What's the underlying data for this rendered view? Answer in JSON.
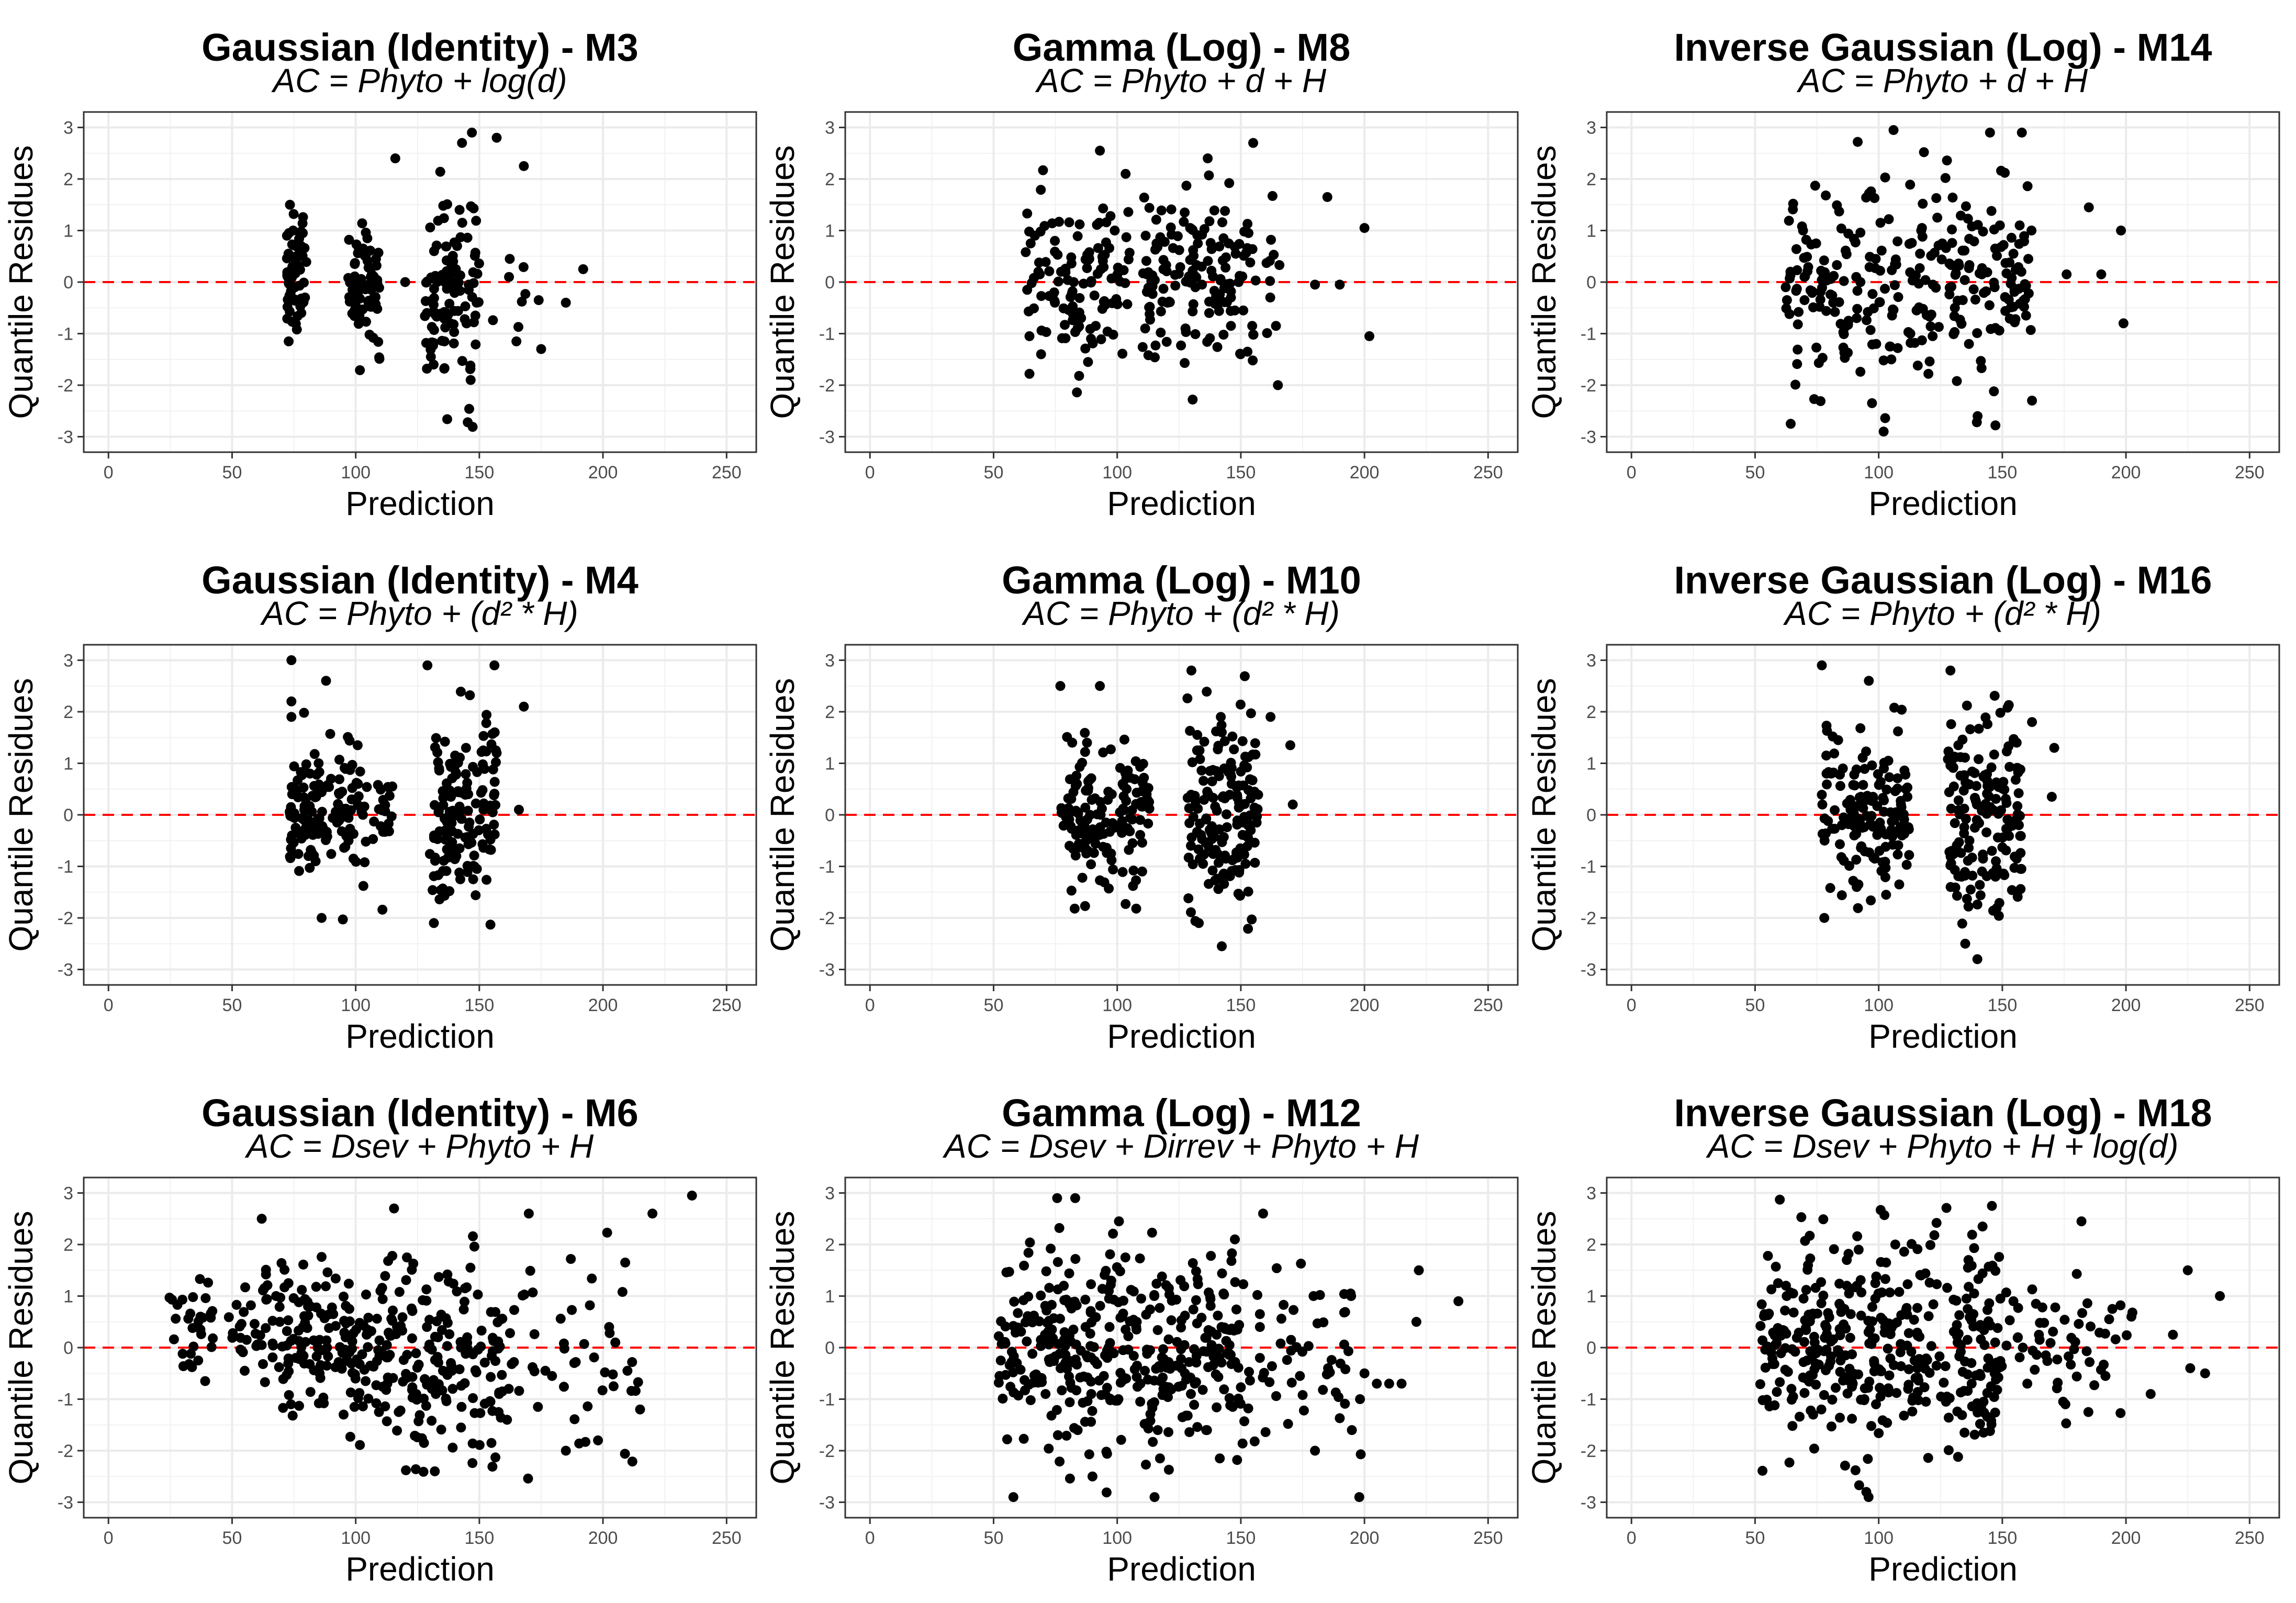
{
  "figure": {
    "layout": {
      "rows": 3,
      "cols": 3
    },
    "x_axis": {
      "label": "Prediction",
      "ticks": [
        0,
        50,
        100,
        150,
        200,
        250
      ],
      "range": [
        -10,
        262
      ]
    },
    "y_axis": {
      "label": "Quantile Residues",
      "ticks": [
        -3,
        -2,
        -1,
        0,
        1,
        2,
        3
      ],
      "range": [
        -3.3,
        3.3
      ]
    },
    "reference_line": {
      "y": 0,
      "color": "#ff0000",
      "style": "dashed"
    },
    "point_color": "#000000"
  },
  "chart_data": [
    {
      "type": "scatter",
      "title": "Gaussian (Identity) - M3",
      "subtitle": "AC = Phyto + log(d)",
      "xlabel": "Prediction",
      "ylabel": "Quantile Residues",
      "xlim": [
        -10,
        262
      ],
      "ylim": [
        -3.3,
        3.3
      ],
      "gen": {
        "clusters": [
          [
            72,
            80,
            0.1,
            0.55,
            65
          ],
          [
            97,
            110,
            0.0,
            0.65,
            70
          ],
          [
            128,
            150,
            -0.35,
            0.9,
            110
          ],
          [
            155,
            170,
            -0.4,
            0.8,
            6
          ]
        ],
        "extra": [
          [
            116,
            2.4
          ],
          [
            168,
            2.25
          ],
          [
            157,
            2.8
          ],
          [
            120,
            0.0
          ],
          [
            192,
            0.25
          ],
          [
            185,
            -0.4
          ],
          [
            174,
            -0.35
          ],
          [
            175,
            -1.3
          ],
          [
            165,
            -1.15
          ],
          [
            162,
            0.1
          ],
          [
            147,
            2.9
          ],
          [
            143,
            2.7
          ]
        ],
        "seed": 3
      },
      "points": []
    },
    {
      "type": "scatter",
      "title": "Gamma (Log) - M8",
      "subtitle": "AC = Phyto + d + H",
      "xlabel": "Prediction",
      "ylabel": "Quantile Residues",
      "xlim": [
        -10,
        262
      ],
      "ylim": [
        -3.3,
        3.3
      ],
      "gen": {
        "clusters": [
          [
            62,
            105,
            0.0,
            0.85,
            120
          ],
          [
            110,
            156,
            0.0,
            0.95,
            150
          ],
          [
            160,
            166,
            -0.3,
            0.8,
            10
          ]
        ],
        "extra": [
          [
            185,
            1.65
          ],
          [
            200,
            1.05
          ],
          [
            202,
            -1.05
          ],
          [
            190,
            -0.05
          ],
          [
            180,
            -0.05
          ],
          [
            93,
            2.55
          ],
          [
            155,
            2.7
          ],
          [
            165,
            -2.0
          ]
        ],
        "seed": 8
      },
      "points": []
    },
    {
      "type": "scatter",
      "title": "Inverse Gaussian (Log) - M14",
      "subtitle": "AC = Phyto + d + H",
      "xlabel": "Prediction",
      "ylabel": "Quantile Residues",
      "xlim": [
        -10,
        262
      ],
      "ylim": [
        -3.3,
        3.3
      ],
      "gen": {
        "clusters": [
          [
            62,
            108,
            -0.05,
            0.95,
            130
          ],
          [
            112,
            162,
            0.1,
            0.95,
            150
          ]
        ],
        "extra": [
          [
            176,
            0.15
          ],
          [
            190,
            0.15
          ],
          [
            185,
            1.45
          ],
          [
            198,
            1.0
          ],
          [
            199,
            -0.8
          ],
          [
            162,
            -2.3
          ],
          [
            106,
            2.95
          ],
          [
            102,
            -2.9
          ],
          [
            145,
            2.9
          ],
          [
            140,
            -2.6
          ]
        ],
        "seed": 14
      },
      "points": []
    },
    {
      "type": "scatter",
      "title": "Gaussian (Identity) - M4",
      "subtitle": "AC = Phyto +  (d² * H)",
      "xlabel": "Prediction",
      "ylabel": "Quantile Residues",
      "xlim": [
        -10,
        262
      ],
      "ylim": [
        -3.3,
        3.3
      ],
      "gen": {
        "clusters": [
          [
            73,
            85,
            0.05,
            0.55,
            70
          ],
          [
            85,
            115,
            0.0,
            0.65,
            90
          ],
          [
            130,
            157,
            -0.1,
            0.95,
            150
          ]
        ],
        "extra": [
          [
            74,
            3.0
          ],
          [
            88,
            2.6
          ],
          [
            129,
            2.9
          ],
          [
            168,
            2.1
          ],
          [
            166,
            0.1
          ],
          [
            74,
            2.2
          ],
          [
            74,
            1.9
          ]
        ],
        "seed": 4
      },
      "points": []
    },
    {
      "type": "scatter",
      "title": "Gamma (Log) - M10",
      "subtitle": "AC = Phyto +  (d² * H)",
      "xlabel": "Prediction",
      "ylabel": "Quantile Residues",
      "xlim": [
        -10,
        262
      ],
      "ylim": [
        -3.3,
        3.3
      ],
      "gen": {
        "clusters": [
          [
            77,
            113,
            0.05,
            0.75,
            150
          ],
          [
            128,
            157,
            0.0,
            0.9,
            160
          ]
        ],
        "extra": [
          [
            77,
            2.5
          ],
          [
            93,
            2.5
          ],
          [
            130,
            2.8
          ],
          [
            171,
            0.2
          ],
          [
            170,
            1.35
          ],
          [
            162,
            1.9
          ],
          [
            133,
            -2.1
          ]
        ],
        "seed": 10
      },
      "points": []
    },
    {
      "type": "scatter",
      "title": "Inverse Gaussian (Log) - M16",
      "subtitle": "AC = Phyto +  (d² * H)",
      "xlabel": "Prediction",
      "ylabel": "Quantile Residues",
      "xlim": [
        -10,
        262
      ],
      "ylim": [
        -3.3,
        3.3
      ],
      "gen": {
        "clusters": [
          [
            77,
            113,
            0.0,
            0.85,
            150
          ],
          [
            128,
            158,
            0.0,
            0.95,
            160
          ]
        ],
        "extra": [
          [
            77,
            2.9
          ],
          [
            96,
            2.6
          ],
          [
            129,
            2.8
          ],
          [
            171,
            1.3
          ],
          [
            170,
            0.35
          ],
          [
            162,
            1.8
          ],
          [
            78,
            -2.0
          ],
          [
            135,
            -2.5
          ]
        ],
        "seed": 16
      },
      "points": []
    },
    {
      "type": "scatter",
      "title": "Gaussian (Identity) - M6",
      "subtitle": "AC = Dsev + Phyto + H",
      "xlabel": "Prediction",
      "ylabel": "Quantile Residues",
      "xlim": [
        -10,
        262
      ],
      "ylim": [
        -3.3,
        3.3
      ],
      "gen": {
        "clusters": [
          [
            24,
            70,
            0.35,
            0.45,
            70
          ],
          [
            70,
            120,
            0.0,
            0.75,
            170
          ],
          [
            120,
            160,
            -0.3,
            0.95,
            140
          ],
          [
            160,
            215,
            -0.4,
            1.1,
            50
          ]
        ],
        "extra": [
          [
            62,
            2.5
          ],
          [
            236,
            2.95
          ],
          [
            220,
            2.6
          ],
          [
            185,
            -2.0
          ],
          [
            198,
            -1.8
          ],
          [
            215,
            -1.2
          ],
          [
            205,
            0.1
          ],
          [
            170,
            2.6
          ]
        ],
        "seed": 6
      },
      "points": []
    },
    {
      "type": "scatter",
      "title": "Gamma (Log) - M12",
      "subtitle": "AC = Dsev + Dirrev + Phyto + H",
      "xlabel": "Prediction",
      "ylabel": "Quantile Residues",
      "xlim": [
        -10,
        262
      ],
      "ylim": [
        -3.3,
        3.3
      ],
      "gen": {
        "clusters": [
          [
            52,
            100,
            0.1,
            0.95,
            190
          ],
          [
            100,
            150,
            0.0,
            1.0,
            190
          ],
          [
            150,
            200,
            -0.2,
            0.95,
            60
          ]
        ],
        "extra": [
          [
            83,
            2.9
          ],
          [
            159,
            2.6
          ],
          [
            238,
            0.9
          ],
          [
            222,
            1.5
          ],
          [
            221,
            0.5
          ],
          [
            215,
            -0.7
          ],
          [
            210,
            -0.7
          ],
          [
            205,
            -0.7
          ],
          [
            200,
            -0.5
          ],
          [
            180,
            -2.0
          ],
          [
            90,
            -2.5
          ]
        ],
        "seed": 12
      },
      "points": []
    },
    {
      "type": "scatter",
      "title": "Inverse Gaussian (Log) - M18",
      "subtitle": "AC = Dsev + Phyto + H + log(d)",
      "xlabel": "Prediction",
      "ylabel": "Quantile Residues",
      "xlim": [
        -10,
        262
      ],
      "ylim": [
        -3.3,
        3.3
      ],
      "gen": {
        "clusters": [
          [
            52,
            100,
            0.0,
            0.95,
            190
          ],
          [
            100,
            150,
            0.0,
            1.0,
            190
          ],
          [
            150,
            205,
            0.0,
            0.75,
            60
          ]
        ],
        "extra": [
          [
            238,
            1.0
          ],
          [
            232,
            -0.5
          ],
          [
            226,
            -0.4
          ],
          [
            225,
            1.5
          ],
          [
            219,
            0.25
          ],
          [
            210,
            -0.9
          ],
          [
            182,
            2.45
          ],
          [
            95,
            -2.8
          ],
          [
            142,
            2.35
          ]
        ],
        "seed": 18
      },
      "points": []
    }
  ]
}
